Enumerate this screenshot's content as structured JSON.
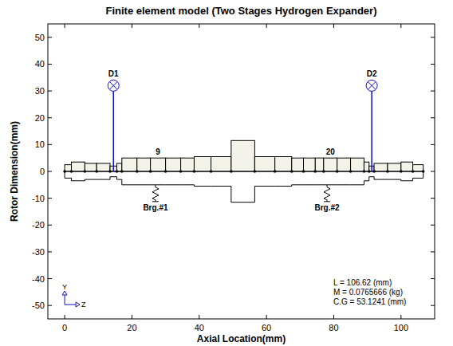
{
  "chart_data": {
    "type": "rotor_model",
    "title": "Finite element model (Two Stages Hydrogen Expander)",
    "x_label": "Axial Location(mm)",
    "y_label": "Rotor Dimension(mm)",
    "xlim": [
      -5,
      110
    ],
    "ylim": [
      -55,
      55
    ],
    "xticks": [
      0,
      20,
      40,
      60,
      80,
      100
    ],
    "yticks": [
      -50,
      -40,
      -30,
      -20,
      -10,
      0,
      10,
      20,
      30,
      40,
      50
    ],
    "grid": false,
    "element_edges": [
      0,
      2,
      6,
      9.5,
      13.5,
      15.5,
      17,
      21.5,
      25.5,
      30,
      34.5,
      38.5,
      43.5,
      49.5,
      56.5,
      62.5,
      67.5,
      71,
      74.5,
      77,
      81,
      85,
      89,
      90.5,
      92,
      96,
      100,
      103.5,
      106.62
    ],
    "radii": [
      2.5,
      3.5,
      3,
      3,
      2,
      3,
      5,
      5,
      5,
      5,
      5,
      5.5,
      5.5,
      11.5,
      5.5,
      5.5,
      5,
      5,
      5,
      5,
      5,
      5,
      3.5,
      2,
      3,
      3,
      3.5,
      2.5
    ],
    "labeled_elements": [
      9,
      20
    ],
    "disks": [
      {
        "label": "D1",
        "z": 14.5,
        "height": 32
      },
      {
        "label": "D2",
        "z": 91.3,
        "height": 32
      }
    ],
    "bearings": [
      {
        "label": "Brg.#1",
        "z": 27
      },
      {
        "label": "Brg.#2",
        "z": 78
      }
    ],
    "info": [
      "L = 106.62 (mm)",
      "M = 0.0765666 (kg)",
      "C.G = 53.1241 (mm)"
    ],
    "axis_icon": {
      "vertical": "Y",
      "horizontal": "Z"
    }
  }
}
